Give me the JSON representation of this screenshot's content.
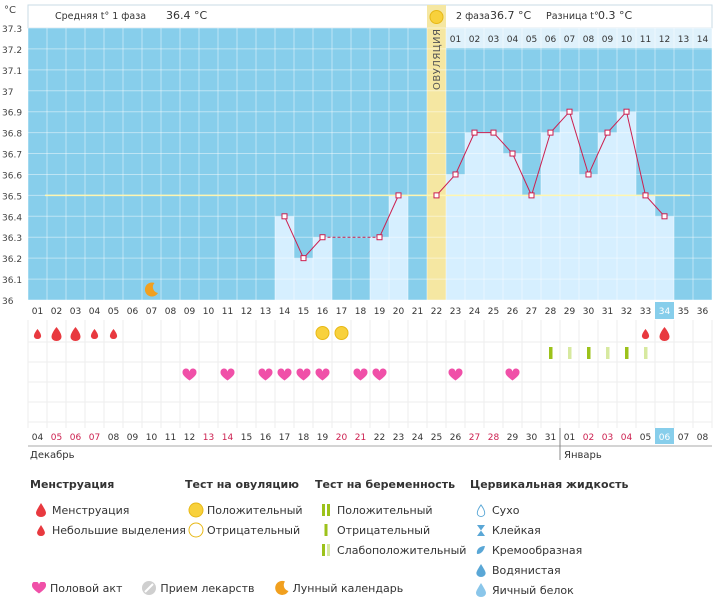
{
  "unit_label": "°C",
  "phase1_label": "Средняя t° 1 фаза",
  "phase1_value": "36.4 °C",
  "phase2_label": "2 фаза",
  "phase2_value": "36.7 °C",
  "diff_label": "Разница t°",
  "diff_value": "0.3 °C",
  "ovulation_label": "ОВУЛЯЦИЯ",
  "month_labels": {
    "december": "Декабрь",
    "january": "Январь"
  },
  "colors": {
    "chart_bg": "#87ceeb",
    "bar_fill": "#d6efff",
    "line": "#cc1f4f",
    "ovulation_band": "#f5e7a2",
    "coverline": "#fff6b0",
    "menstruation": "#e8393f",
    "heart": "#f050a8",
    "preg_test": "#9cc21a",
    "cycle_highlight": "#87ceeb",
    "weekend_text": "#cc1f4f"
  },
  "chart_data": {
    "type": "line",
    "title": "",
    "xlabel": "",
    "ylabel": "°C",
    "ylim": [
      36.0,
      37.3
    ],
    "yticks": [
      "36",
      "36.1",
      "36.2",
      "36.3",
      "36.4",
      "36.5",
      "36.6",
      "36.7",
      "36.8",
      "36.9",
      "37",
      "37.1",
      "37.2",
      "37.3"
    ],
    "cycle_days": [
      "01",
      "02",
      "03",
      "04",
      "05",
      "06",
      "07",
      "08",
      "09",
      "10",
      "11",
      "12",
      "13",
      "14",
      "15",
      "16",
      "17",
      "18",
      "19",
      "20",
      "21",
      "22",
      "23",
      "24",
      "25",
      "26",
      "27",
      "28",
      "29",
      "30",
      "31",
      "32",
      "33",
      "34",
      "35",
      "36"
    ],
    "phase2_days": [
      "01",
      "02",
      "03",
      "04",
      "05",
      "06",
      "07",
      "08",
      "09",
      "10",
      "11",
      "12",
      "13",
      "14"
    ],
    "phase2_start_cycle_day": 23,
    "dates": [
      {
        "d": "04",
        "w": false
      },
      {
        "d": "05",
        "w": true
      },
      {
        "d": "06",
        "w": true
      },
      {
        "d": "07",
        "w": true
      },
      {
        "d": "08",
        "w": false
      },
      {
        "d": "09",
        "w": false
      },
      {
        "d": "10",
        "w": false
      },
      {
        "d": "11",
        "w": false
      },
      {
        "d": "12",
        "w": false
      },
      {
        "d": "13",
        "w": true
      },
      {
        "d": "14",
        "w": true
      },
      {
        "d": "15",
        "w": false
      },
      {
        "d": "16",
        "w": false
      },
      {
        "d": "17",
        "w": false
      },
      {
        "d": "18",
        "w": false
      },
      {
        "d": "19",
        "w": false
      },
      {
        "d": "20",
        "w": true
      },
      {
        "d": "21",
        "w": true
      },
      {
        "d": "22",
        "w": false
      },
      {
        "d": "23",
        "w": false
      },
      {
        "d": "24",
        "w": false
      },
      {
        "d": "25",
        "w": false
      },
      {
        "d": "26",
        "w": false
      },
      {
        "d": "27",
        "w": true
      },
      {
        "d": "28",
        "w": true
      },
      {
        "d": "29",
        "w": false
      },
      {
        "d": "30",
        "w": false
      },
      {
        "d": "31",
        "w": false
      },
      {
        "d": "01",
        "w": false
      },
      {
        "d": "02",
        "w": true
      },
      {
        "d": "03",
        "w": true
      },
      {
        "d": "04",
        "w": true
      },
      {
        "d": "05",
        "w": false
      },
      {
        "d": "06",
        "w": false
      },
      {
        "d": "07",
        "w": false
      },
      {
        "d": "08",
        "w": false
      }
    ],
    "current_cycle_day": 34,
    "ovulation_day": 22,
    "coverline": 36.5,
    "series": [
      {
        "values": [
          null,
          null,
          null,
          null,
          null,
          null,
          null,
          null,
          null,
          null,
          null,
          null,
          null,
          36.4,
          36.2,
          36.3,
          null,
          null,
          36.3,
          36.5,
          null,
          36.5,
          36.6,
          36.8,
          36.8,
          36.7,
          36.5,
          36.8,
          36.9,
          36.6,
          36.8,
          36.9,
          36.5,
          36.4,
          null,
          null
        ]
      }
    ],
    "dashed_gaps": [
      [
        16,
        19
      ]
    ],
    "bars": [
      null,
      null,
      null,
      null,
      null,
      null,
      null,
      null,
      null,
      null,
      null,
      null,
      null,
      36.4,
      36.2,
      36.3,
      null,
      null,
      36.3,
      36.5,
      null,
      null,
      36.6,
      36.8,
      36.8,
      36.7,
      36.5,
      36.8,
      36.9,
      36.6,
      36.8,
      36.9,
      36.5,
      36.4,
      null,
      null
    ],
    "moon_day": 7,
    "markers": {
      "menstruation": [
        {
          "day": 1,
          "size": "small"
        },
        {
          "day": 2,
          "size": "large"
        },
        {
          "day": 3,
          "size": "large"
        },
        {
          "day": 4,
          "size": "small"
        },
        {
          "day": 5,
          "size": "small"
        },
        {
          "day": 33,
          "size": "small"
        },
        {
          "day": 34,
          "size": "large"
        }
      ],
      "ovulation_test_positive": [
        16,
        17
      ],
      "pregnancy_test": [
        {
          "day": 28,
          "type": "positive"
        },
        {
          "day": 29,
          "type": "weak"
        },
        {
          "day": 30,
          "type": "positive"
        },
        {
          "day": 31,
          "type": "weak"
        },
        {
          "day": 32,
          "type": "positive"
        },
        {
          "day": 33,
          "type": "weak"
        }
      ],
      "intercourse": [
        9,
        11,
        13,
        14,
        15,
        16,
        18,
        19,
        23,
        26
      ]
    }
  },
  "legend": {
    "menstruation": {
      "title": "Менструация",
      "items": [
        "Менструация",
        "Небольшие выделения"
      ]
    },
    "ovulation_test": {
      "title": "Тест на овуляцию",
      "items": [
        "Положительный",
        "Отрицательный"
      ]
    },
    "pregnancy_test": {
      "title": "Тест на беременность",
      "items": [
        "Положительный",
        "Отрицательный",
        "Слабоположительный"
      ]
    },
    "cervical": {
      "title": "Цервикальная жидкость",
      "items": [
        "Сухо",
        "Клейкая",
        "Кремообразная",
        "Водянистая",
        "Яичный белок"
      ]
    },
    "bottom": [
      "Половой акт",
      "Прием лекарств",
      "Лунный календарь"
    ]
  }
}
